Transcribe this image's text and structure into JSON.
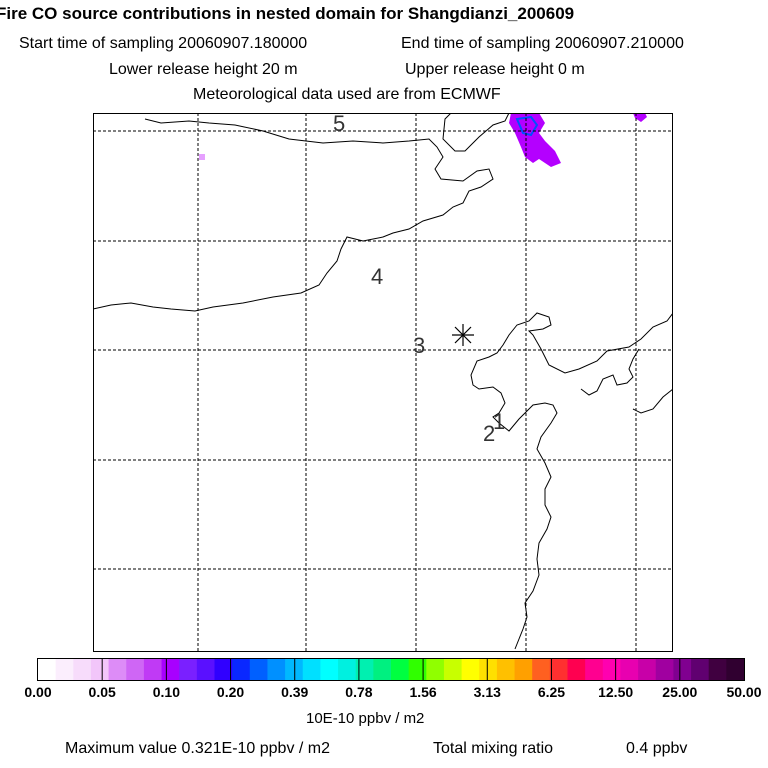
{
  "title": "Fire CO source contributions in nested domain for Shangdianzi_200609",
  "sampling": {
    "start": "Start time of sampling 20060907.180000",
    "end": "End time of sampling 20060907.210000"
  },
  "release": {
    "lower": "Lower release height   20 m",
    "upper": "Upper release height    0 m"
  },
  "meteo": "Meteorological data used are from ECMWF",
  "map": {
    "labels": [
      "5",
      "4",
      "3",
      "2",
      "1"
    ],
    "receptor_symbol": "asterisk",
    "plume_color": "#b400ff",
    "plume_outline_color": "#0050ff",
    "light_plume_color": "#e6a0ff"
  },
  "colorbar": {
    "ticks": [
      "0.00",
      "0.05",
      "0.10",
      "0.20",
      "0.39",
      "0.78",
      "1.56",
      "3.13",
      "6.25",
      "12.50",
      "25.00",
      "50.00"
    ],
    "units": "10E-10 ppbv / m2",
    "colors": [
      "#ffffff",
      "#fbeefd",
      "#f7dcfb",
      "#f2c6fa",
      "#dd8cf7",
      "#cf66f5",
      "#c03af5",
      "#a800ff",
      "#7a20ff",
      "#5a10ff",
      "#3000ff",
      "#0a28ff",
      "#0060ff",
      "#0090ff",
      "#00b8ff",
      "#00e0ff",
      "#00ffff",
      "#00f0e0",
      "#00f0b0",
      "#00f080",
      "#00ff40",
      "#30ff00",
      "#90ff00",
      "#c8ff00",
      "#ffff00",
      "#ffe000",
      "#ffc000",
      "#ffa000",
      "#ff6020",
      "#ff3030",
      "#ff0050",
      "#ff0090",
      "#ff00b0",
      "#e800b0",
      "#c800a8",
      "#a000a0",
      "#800090",
      "#600070",
      "#400040",
      "#300030"
    ]
  },
  "footer": {
    "max_value": "Maximum value  0.321E-10 ppbv / m2",
    "total_label": "Total mixing ratio",
    "total_value": "0.4 ppbv"
  }
}
